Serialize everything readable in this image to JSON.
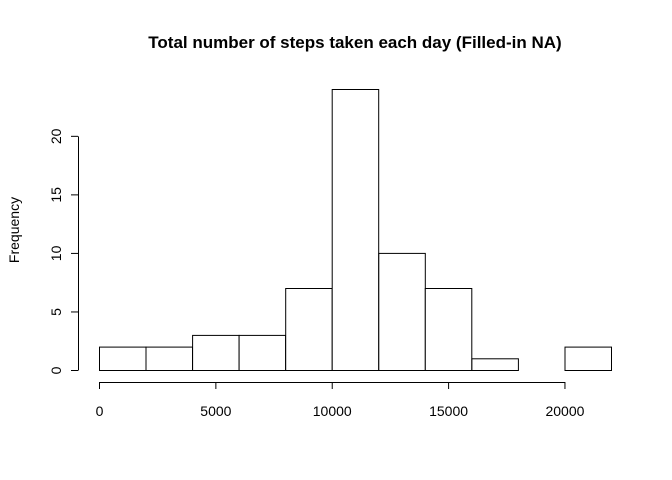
{
  "chart_data": {
    "type": "bar",
    "title": "Total number of steps taken each day (Filled-in NA)",
    "xlabel": "",
    "ylabel": "Frequency",
    "bin_edges": [
      0,
      2000,
      4000,
      6000,
      8000,
      10000,
      12000,
      14000,
      16000,
      18000,
      20000,
      22000
    ],
    "values": [
      2,
      2,
      3,
      3,
      7,
      24,
      10,
      7,
      1,
      0,
      2
    ],
    "xticks": [
      0,
      5000,
      10000,
      15000,
      20000
    ],
    "yticks": [
      0,
      5,
      10,
      15,
      20
    ],
    "xlim": [
      0,
      22000
    ],
    "ylim": [
      0,
      24
    ],
    "grid": false
  }
}
